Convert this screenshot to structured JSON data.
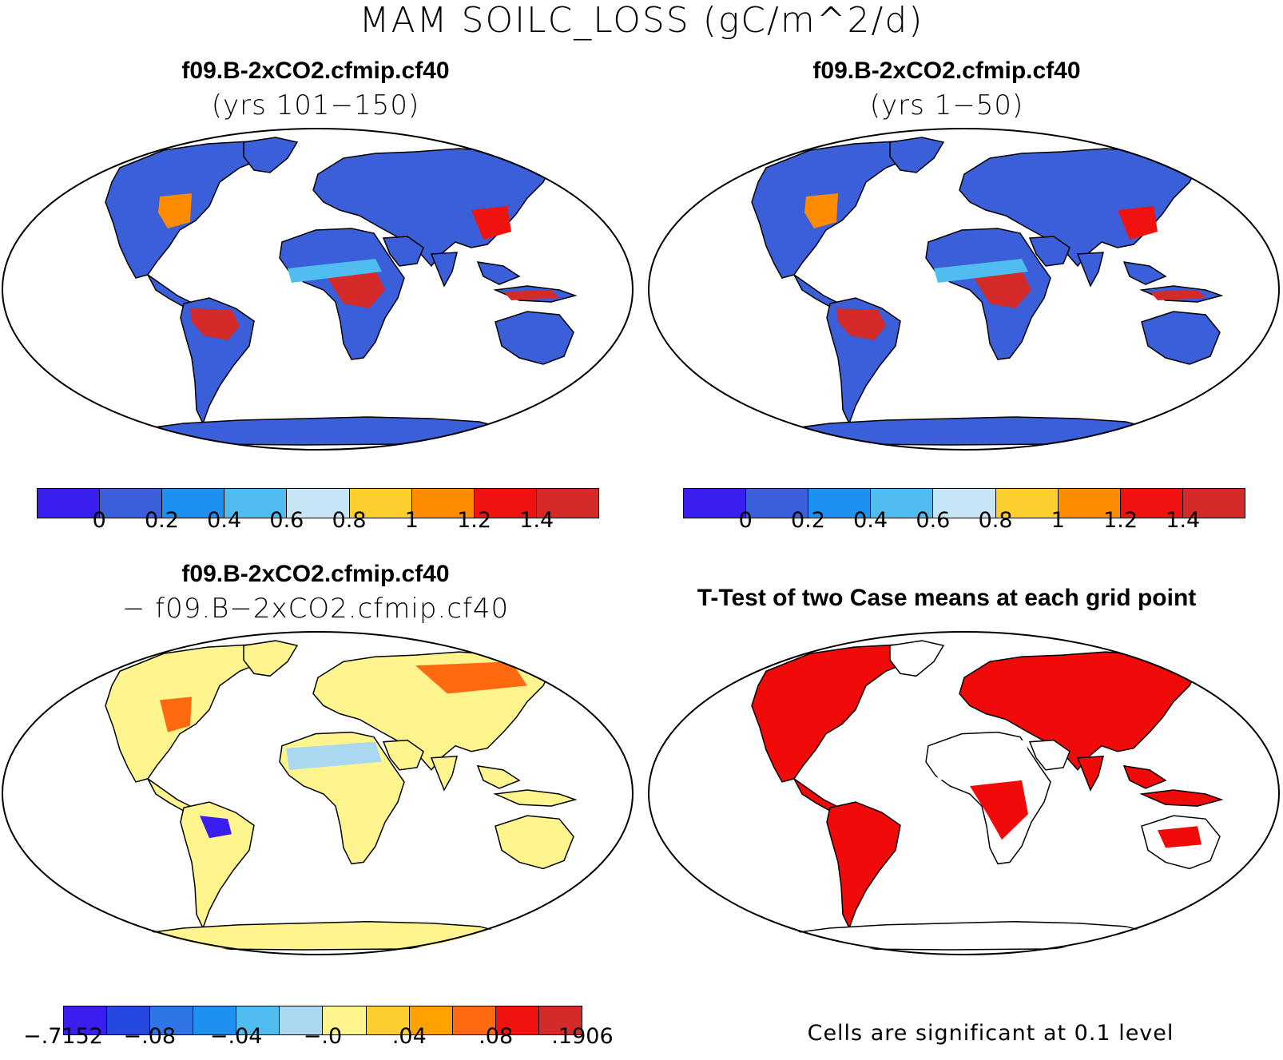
{
  "main_title": "MAM SOILC_LOSS (gC/m^2/d)",
  "panels": [
    {
      "title": "f09.B-2xCO2.cfmip.cf40",
      "subtitle": "(yrs 101−150)"
    },
    {
      "title": "f09.B-2xCO2.cfmip.cf40",
      "subtitle": "(yrs 1−50)"
    },
    {
      "title": "f09.B-2xCO2.cfmip.cf40",
      "subtitle": "− f09.B−2xCO2.cfmip.cf40"
    },
    {
      "title": "T-Test of two Case means at each grid point",
      "subtitle": ""
    }
  ],
  "colorbar_abs": {
    "colors": [
      "#3a1ef0",
      "#3a5fd9",
      "#1e90f0",
      "#4fbdf0",
      "#c6e6f5",
      "#fccf2e",
      "#ff8c00",
      "#f0120f",
      "#d42a2a"
    ],
    "ticks": [
      "0",
      "0.2",
      "0.4",
      "0.6",
      "0.8",
      "1",
      "1.2",
      "1.4"
    ]
  },
  "colorbar_diff": {
    "colors": [
      "#3a1ef0",
      "#2448e0",
      "#2f75e8",
      "#1e90f0",
      "#4fbdf0",
      "#a9d8f0",
      "#fff58f",
      "#fccf2e",
      "#ffa200",
      "#ff6a10",
      "#f0120f",
      "#d42a2a"
    ],
    "ticks": [
      "−.7152",
      "−.08",
      "−.04",
      "−.0",
      ".04",
      ".08",
      ".1906"
    ]
  },
  "significance_note": "Cells are significant at 0.1 level",
  "map_colors": {
    "ocean": "#ffffff",
    "outline": "#000000",
    "land_low": "#3a5fd9",
    "land_mid": "#4fbdf0",
    "land_high": "#d42a2a",
    "diff_base": "#fff58f",
    "diff_warm": "#ffa200",
    "diff_cold": "#2f75e8",
    "significant": "#f00a0a"
  }
}
